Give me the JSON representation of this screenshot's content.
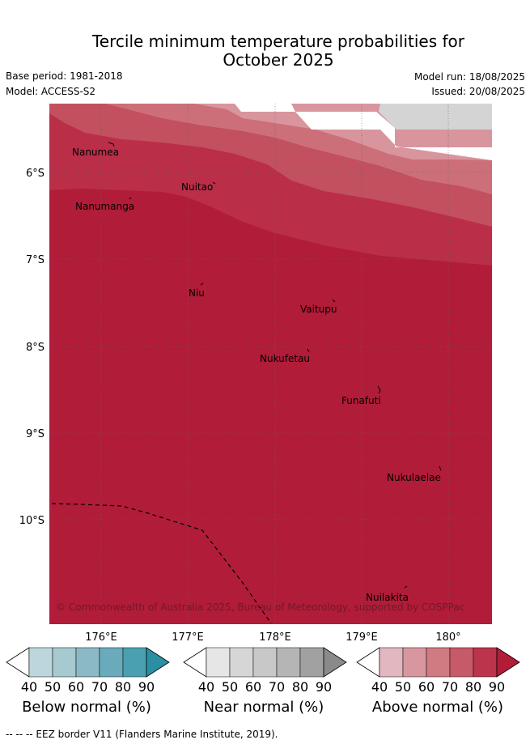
{
  "title": {
    "line1": "Tercile minimum temperature probabilities for",
    "line2": "October 2025"
  },
  "meta": {
    "base_period": "Base period: 1981-2018",
    "model": "Model: ACCESS-S2",
    "model_run": "Model run: 18/08/2025",
    "issued": "Issued: 20/08/2025"
  },
  "map": {
    "lat_labels": [
      "6°S",
      "7°S",
      "8°S",
      "9°S",
      "10°S"
    ],
    "lon_labels": [
      "176°E",
      "177°E",
      "178°E",
      "179°E",
      "180°"
    ],
    "places": [
      "Nanumea",
      "Nuitao",
      "Nanumanga",
      "Niu",
      "Vaitupu",
      "Nukufetau",
      "Funafuti",
      "Nukulaelae",
      "Nuilakita"
    ],
    "copyright": "© Commonwealth of Australia 2025, Bureau of Meteorology, supported by COSPPac",
    "colors": {
      "above_90": "#b11c38",
      "above_80": "#ba2e48",
      "above_70": "#c2505f",
      "above_60": "#cd6f78",
      "above_50": "#d9959d",
      "near_50": "#d4d4d4",
      "below_90": "#2b8fa2"
    }
  },
  "colorbars": [
    {
      "label": "Below normal (%)",
      "ticks": [
        "40",
        "50",
        "60",
        "70",
        "80",
        "90"
      ],
      "colors": [
        "#bdd5dc",
        "#a7c9d0",
        "#8bb9c5",
        "#6aabbb",
        "#4aa0b0",
        "#2b8fa2"
      ]
    },
    {
      "label": "Near normal (%)",
      "ticks": [
        "40",
        "50",
        "60",
        "70",
        "80",
        "90"
      ],
      "colors": [
        "#e6e6e6",
        "#d6d6d6",
        "#c8c8c8",
        "#b5b5b5",
        "#a1a1a1",
        "#8a8a8a"
      ]
    },
    {
      "label": "Above normal (%)",
      "ticks": [
        "40",
        "50",
        "60",
        "70",
        "80",
        "90"
      ],
      "colors": [
        "#e2b7bf",
        "#d8969e",
        "#d07a82",
        "#c65a68",
        "#bb344c",
        "#b11c38"
      ]
    }
  ],
  "footer": "--  --  -- EEZ border V11 (Flanders Marine Institute, 2019)."
}
